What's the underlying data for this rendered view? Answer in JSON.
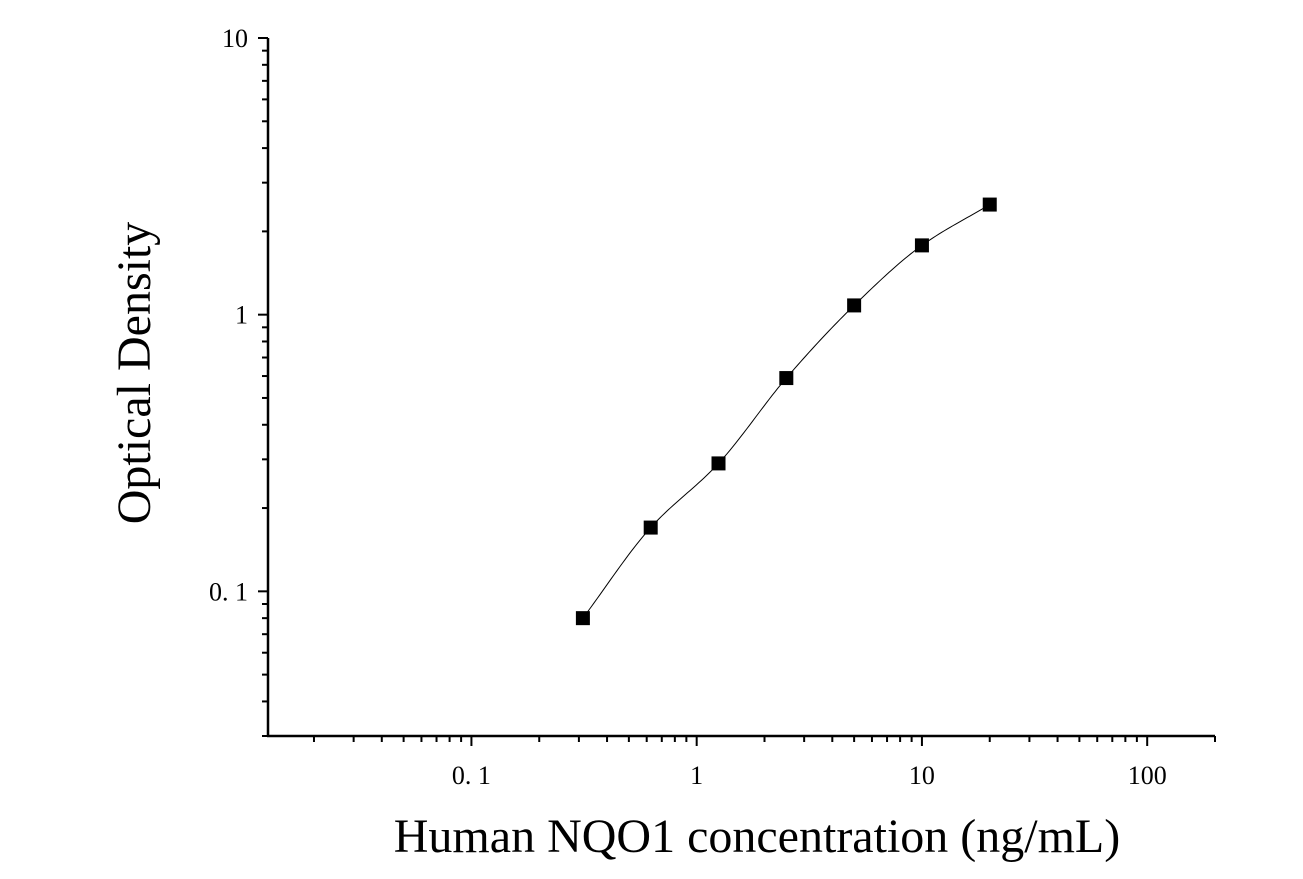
{
  "chart_data": {
    "type": "scatter",
    "title": "",
    "xlabel": "Human NQO1 concentration (ng/mL)",
    "ylabel": "Optical Density",
    "xscale": "log",
    "yscale": "log",
    "xlim": [
      0.0125,
      200
    ],
    "ylim": [
      0.03,
      10
    ],
    "x_ticks": [
      {
        "value": 0.1,
        "label": "0. 1"
      },
      {
        "value": 1,
        "label": "1"
      },
      {
        "value": 10,
        "label": "10"
      },
      {
        "value": 100,
        "label": "100"
      }
    ],
    "y_ticks": [
      {
        "value": 0.1,
        "label": "0. 1"
      },
      {
        "value": 1,
        "label": "1"
      },
      {
        "value": 10,
        "label": "10"
      }
    ],
    "grid": false,
    "legend": "none",
    "marker": "square",
    "color": "#000000",
    "points": {
      "x": [
        0.3125,
        0.625,
        1.25,
        2.5,
        5,
        10,
        20
      ],
      "y": [
        0.08,
        0.17,
        0.29,
        0.59,
        1.08,
        1.78,
        2.5
      ]
    },
    "fit_curve": true
  }
}
